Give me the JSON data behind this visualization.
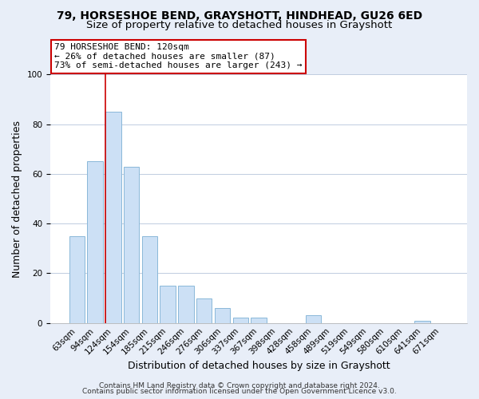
{
  "title_line1": "79, HORSESHOE BEND, GRAYSHOTT, HINDHEAD, GU26 6ED",
  "title_line2": "Size of property relative to detached houses in Grayshott",
  "xlabel": "Distribution of detached houses by size in Grayshott",
  "ylabel": "Number of detached properties",
  "bar_labels": [
    "63sqm",
    "94sqm",
    "124sqm",
    "154sqm",
    "185sqm",
    "215sqm",
    "246sqm",
    "276sqm",
    "306sqm",
    "337sqm",
    "367sqm",
    "398sqm",
    "428sqm",
    "458sqm",
    "489sqm",
    "519sqm",
    "549sqm",
    "580sqm",
    "610sqm",
    "641sqm",
    "671sqm"
  ],
  "bar_values": [
    35,
    65,
    85,
    63,
    35,
    15,
    15,
    10,
    6,
    2,
    2,
    0,
    0,
    3,
    0,
    0,
    0,
    0,
    0,
    1,
    0
  ],
  "bar_color": "#cce0f5",
  "bar_edge_color": "#8ab8d8",
  "highlight_bar_index": 2,
  "highlight_line_color": "#cc0000",
  "annotation_lines": [
    "79 HORSESHOE BEND: 120sqm",
    "← 26% of detached houses are smaller (87)",
    "73% of semi-detached houses are larger (243) →"
  ],
  "annotation_box_color": "white",
  "annotation_box_edge": "#cc0000",
  "ylim": [
    0,
    100
  ],
  "yticks": [
    0,
    20,
    40,
    60,
    80,
    100
  ],
  "footer_line1": "Contains HM Land Registry data © Crown copyright and database right 2024.",
  "footer_line2": "Contains public sector information licensed under the Open Government Licence v3.0.",
  "bg_color": "#e8eef8",
  "plot_bg_color": "white",
  "grid_color": "#c0cce0",
  "title_fontsize": 10,
  "subtitle_fontsize": 9.5,
  "axis_label_fontsize": 9,
  "tick_fontsize": 7.5,
  "annotation_fontsize": 8,
  "footer_fontsize": 6.5
}
